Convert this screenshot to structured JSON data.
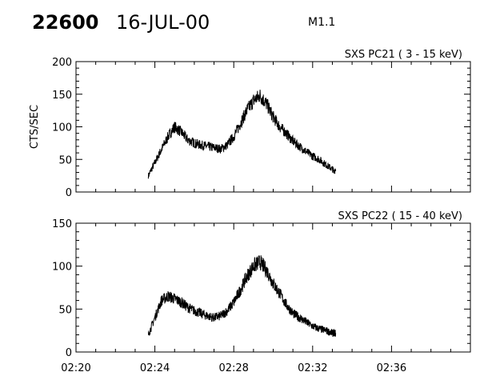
{
  "header": {
    "flare_id": "22600",
    "date": "16-JUL-00",
    "flare_class": "M1.1"
  },
  "chart_data": [
    {
      "type": "line",
      "title": "SXS PC21  (  3 - 15 keV)",
      "ylabel": "CTS/SEC",
      "xlabel": "",
      "xlim": [
        "02:20",
        "02:40"
      ],
      "ylim": [
        0,
        200
      ],
      "yticks": [
        0,
        50,
        100,
        150,
        200
      ],
      "xticks": [
        "02:20",
        "02:24",
        "02:28",
        "02:32",
        "02:36"
      ],
      "x": [
        "02:23:40",
        "02:24:00",
        "02:24:20",
        "02:24:40",
        "02:25:00",
        "02:25:20",
        "02:25:40",
        "02:26:00",
        "02:26:20",
        "02:26:40",
        "02:27:00",
        "02:27:20",
        "02:27:40",
        "02:28:00",
        "02:28:20",
        "02:28:40",
        "02:29:00",
        "02:29:20",
        "02:29:40",
        "02:30:00",
        "02:30:20",
        "02:30:40",
        "02:31:00",
        "02:31:20",
        "02:31:40",
        "02:32:00",
        "02:32:20",
        "02:32:40",
        "02:33:00",
        "02:33:10"
      ],
      "series": [
        {
          "values": [
            25,
            45,
            65,
            85,
            100,
            92,
            80,
            75,
            72,
            70,
            68,
            66,
            72,
            85,
            105,
            125,
            140,
            148,
            135,
            115,
            100,
            90,
            78,
            70,
            62,
            55,
            50,
            42,
            35,
            32
          ]
        }
      ]
    },
    {
      "type": "line",
      "title": "SXS PC22  ( 15 - 40 keV)",
      "ylabel": "",
      "xlabel": "",
      "xlim": [
        "02:20",
        "02:40"
      ],
      "ylim": [
        0,
        150
      ],
      "yticks": [
        0,
        50,
        100,
        150
      ],
      "xticks": [
        "02:20",
        "02:24",
        "02:28",
        "02:32",
        "02:36"
      ],
      "x": [
        "02:23:40",
        "02:24:00",
        "02:24:20",
        "02:24:40",
        "02:25:00",
        "02:25:20",
        "02:25:40",
        "02:26:00",
        "02:26:20",
        "02:26:40",
        "02:27:00",
        "02:27:20",
        "02:27:40",
        "02:28:00",
        "02:28:20",
        "02:28:40",
        "02:29:00",
        "02:29:20",
        "02:29:40",
        "02:30:00",
        "02:30:20",
        "02:30:40",
        "02:31:00",
        "02:31:20",
        "02:31:40",
        "02:32:00",
        "02:32:20",
        "02:32:40",
        "02:33:00",
        "02:33:10"
      ],
      "series": [
        {
          "values": [
            20,
            40,
            60,
            65,
            62,
            58,
            52,
            48,
            45,
            42,
            40,
            42,
            48,
            58,
            72,
            88,
            100,
            105,
            95,
            80,
            68,
            55,
            45,
            40,
            35,
            30,
            27,
            25,
            22,
            22
          ]
        }
      ]
    }
  ]
}
